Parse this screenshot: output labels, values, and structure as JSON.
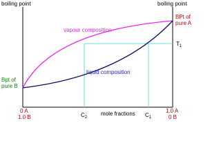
{
  "axes": {
    "left_title": "boiling point",
    "right_title": "boiling point",
    "x_title": "mole fractions"
  },
  "left_end": {
    "line1": "Bpt of",
    "line2": "pure B"
  },
  "right_end": {
    "line1": "BPt of",
    "line2": "pure A"
  },
  "temperature": {
    "label": "T",
    "subscript": "1"
  },
  "curves": {
    "vapour": "vapour composition",
    "liquid": "liquid composition"
  },
  "compositions": [
    {
      "label": "C",
      "subscript": "2"
    },
    {
      "label": "C",
      "subscript": "1"
    }
  ],
  "x_ends": {
    "left_top": "0 A",
    "left_bottom": "1.0 B",
    "right_top": "1.0 A",
    "right_bottom": "0 B"
  }
}
